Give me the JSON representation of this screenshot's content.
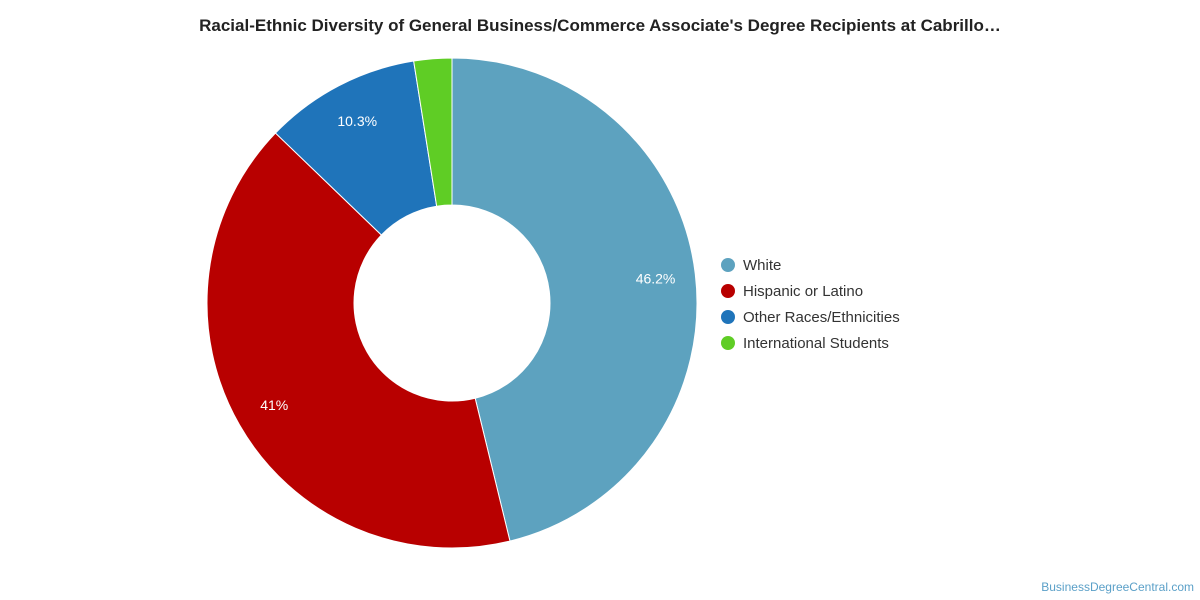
{
  "chart_data": {
    "type": "pie",
    "title": "Racial-Ethnic Diversity of General Business/Commerce Associate's Degree Recipients at Cabrillo…",
    "categories": [
      "White",
      "Hispanic or Latino",
      "Other Races/Ethnicities",
      "International Students"
    ],
    "values": [
      46.2,
      41.0,
      10.3,
      2.5
    ],
    "data_labels": [
      "46.2%",
      "41%",
      "10.3%",
      ""
    ],
    "colors": [
      "#5da2bf",
      "#b80000",
      "#1f74ba",
      "#5fcd25"
    ],
    "legend_position": "right",
    "donut": true
  },
  "watermark": "BusinessDegreeCentral.com"
}
